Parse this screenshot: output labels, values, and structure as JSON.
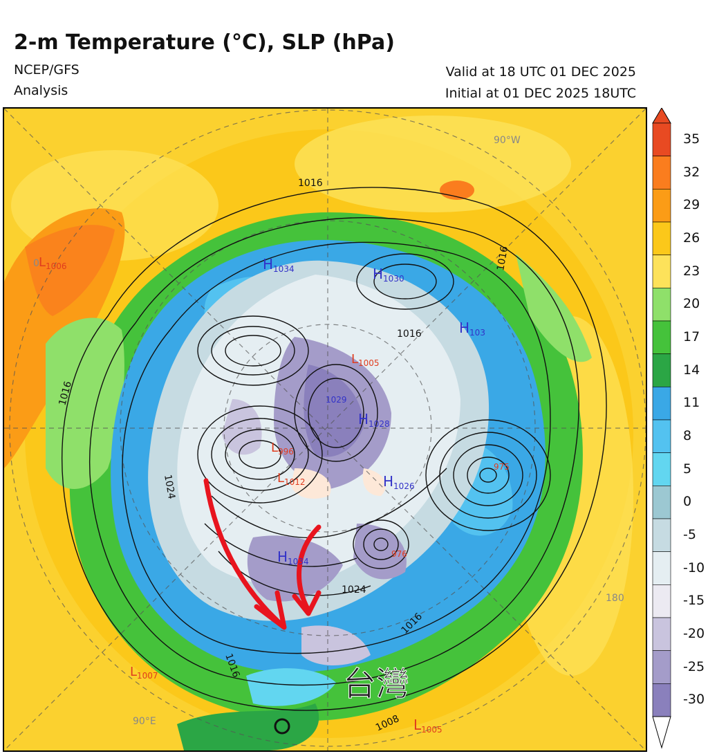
{
  "header": {
    "title": "2-m Temperature (°C), SLP (hPa)",
    "model": "NCEP/GFS",
    "product": "Analysis",
    "valid": "Valid at 18 UTC 01 DEC 2025",
    "initial": "Initial at 01 DEC 2025 18UTC"
  },
  "map": {
    "projection": "north-polar-stereographic",
    "meridian_labels": [
      {
        "key": "lon_90w",
        "text": "90°W"
      },
      {
        "key": "lon_180",
        "text": "180"
      },
      {
        "key": "lon_90e",
        "text": "90°E"
      },
      {
        "key": "lon_0",
        "text": "0"
      }
    ],
    "annotation_text": "台灣",
    "pressure_centers": [
      {
        "key": "h1034",
        "letter": "H",
        "value": "1034",
        "color": "#3232c8"
      },
      {
        "key": "h1030",
        "letter": "H",
        "value": "1030",
        "color": "#3232c8"
      },
      {
        "key": "h1031",
        "letter": "H",
        "value": "103",
        "color": "#3232c8"
      },
      {
        "key": "h1028",
        "letter": "H",
        "value": "1028",
        "color": "#3232c8"
      },
      {
        "key": "h1026",
        "letter": "H",
        "value": "1026",
        "color": "#3232c8"
      },
      {
        "key": "h1034b",
        "letter": "H",
        "value": "1034",
        "color": "#3232c8"
      },
      {
        "key": "h1020",
        "letter": "H",
        "value": "1029",
        "color": "#3232c8"
      },
      {
        "key": "l1006",
        "letter": "L",
        "value": "1006",
        "color": "#e03c1e"
      },
      {
        "key": "l1007",
        "letter": "L",
        "value": "1007",
        "color": "#e03c1e"
      },
      {
        "key": "l1005",
        "letter": "L",
        "value": "1005",
        "color": "#e03c1e"
      },
      {
        "key": "l996",
        "letter": "L",
        "value": "996",
        "color": "#e03c1e"
      },
      {
        "key": "l1012",
        "letter": "L",
        "value": "1012",
        "color": "#e03c1e"
      },
      {
        "key": "l975",
        "letter": "L",
        "value": "975",
        "color": "#e03c1e"
      },
      {
        "key": "l976",
        "letter": "L",
        "value": "976",
        "color": "#e03c1e"
      },
      {
        "key": "l1006b",
        "letter": "L",
        "value": "1005",
        "color": "#e03c1e"
      }
    ],
    "isobar_labels": [
      {
        "key": "i1016a",
        "text": "1016"
      },
      {
        "key": "i1016b",
        "text": "1016"
      },
      {
        "key": "i1016c",
        "text": "1016"
      },
      {
        "key": "i1016d",
        "text": "1016"
      },
      {
        "key": "i1016e",
        "text": "1016"
      },
      {
        "key": "i1016f",
        "text": "1016"
      },
      {
        "key": "i1024a",
        "text": "1024"
      },
      {
        "key": "i1024b",
        "text": "1024"
      },
      {
        "key": "i1008",
        "text": "1008"
      }
    ]
  },
  "colorbar": {
    "unit": "°C",
    "labels": [
      "35",
      "32",
      "29",
      "26",
      "23",
      "20",
      "17",
      "14",
      "11",
      "8",
      "5",
      "0",
      "-5",
      "-10",
      "-15",
      "-20",
      "-25",
      "-30"
    ],
    "colors": [
      "#e84a22",
      "#fa7d1e",
      "#fb9c16",
      "#fbc81a",
      "#fde25a",
      "#8fe06a",
      "#45c23b",
      "#2ba645",
      "#3aa8e6",
      "#53c2f0",
      "#62d6f0",
      "#9cc8d2",
      "#c6dbe2",
      "#e5eef2",
      "#eceaf2",
      "#c9c4de",
      "#a49cc9",
      "#8a80bc"
    ]
  }
}
